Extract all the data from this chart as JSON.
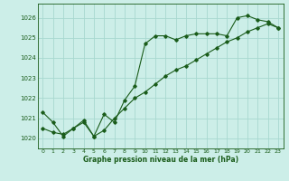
{
  "title": "Graphe pression niveau de la mer (hPa)",
  "bg_color": "#cceee8",
  "line_color": "#1a5c1a",
  "grid_color": "#a8d8d0",
  "xlim": [
    -0.5,
    23.5
  ],
  "ylim": [
    1019.5,
    1026.7
  ],
  "yticks": [
    1020,
    1021,
    1022,
    1023,
    1024,
    1025,
    1026
  ],
  "xtick_labels": [
    "0",
    "1",
    "2",
    "3",
    "4",
    "5",
    "6",
    "7",
    "8",
    "9",
    "10",
    "11",
    "12",
    "13",
    "14",
    "15",
    "16",
    "17",
    "18",
    "19",
    "20",
    "21",
    "22",
    "23"
  ],
  "series1_x": [
    0,
    1,
    2,
    3,
    4,
    5,
    6,
    7,
    8,
    9,
    10,
    11,
    12,
    13,
    14,
    15,
    16,
    17,
    18,
    19,
    20,
    21,
    22,
    23
  ],
  "series1_y": [
    1021.3,
    1020.8,
    1020.1,
    1020.5,
    1020.9,
    1020.1,
    1021.2,
    1020.8,
    1021.9,
    1022.6,
    1024.7,
    1025.1,
    1025.1,
    1024.9,
    1025.1,
    1025.2,
    1025.2,
    1025.2,
    1025.1,
    1026.0,
    1026.1,
    1025.9,
    1025.8,
    1025.5
  ],
  "series2_x": [
    0,
    1,
    2,
    3,
    4,
    5,
    6,
    7,
    8,
    9,
    10,
    11,
    12,
    13,
    14,
    15,
    16,
    17,
    18,
    19,
    20,
    21,
    22,
    23
  ],
  "series2_y": [
    1020.5,
    1020.3,
    1020.2,
    1020.5,
    1020.8,
    1020.1,
    1020.4,
    1021.0,
    1021.5,
    1022.0,
    1022.3,
    1022.7,
    1023.1,
    1023.4,
    1023.6,
    1023.9,
    1024.2,
    1024.5,
    1024.8,
    1025.0,
    1025.3,
    1025.5,
    1025.7,
    1025.5
  ]
}
